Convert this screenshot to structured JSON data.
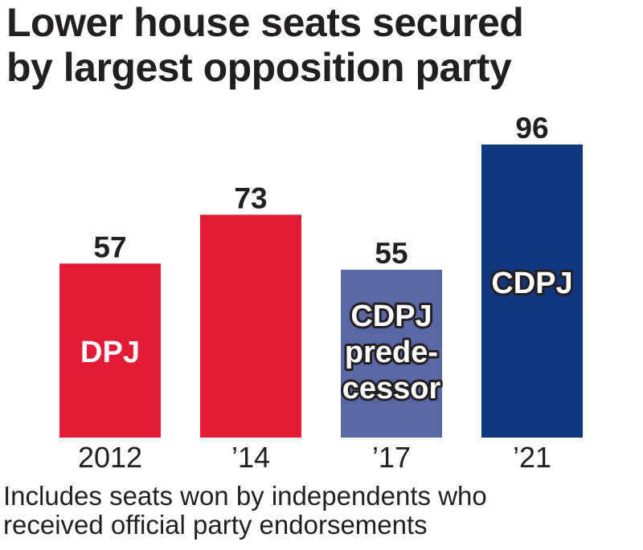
{
  "title_lines": [
    "Lower house seats secured",
    "by largest opposition party"
  ],
  "footnote_lines": [
    "Includes seats won by independents who",
    "received official party endorsements"
  ],
  "colors": {
    "red": "#e31b35",
    "light_blue": "#5867a6",
    "dark_blue": "#113780",
    "text": "#231f20"
  },
  "chart_data": {
    "type": "bar",
    "categories": [
      "2012",
      "’14",
      "’17",
      "’21"
    ],
    "values": [
      57,
      73,
      55,
      96
    ],
    "bar_labels": [
      [
        "DPJ"
      ],
      [],
      [
        "CDPJ",
        "prede-",
        "cessor"
      ],
      [
        "CDPJ"
      ]
    ],
    "bar_colors": [
      "#e31b35",
      "#e31b35",
      "#5867a6",
      "#113780"
    ],
    "ylim": [
      0,
      96
    ],
    "grid": false,
    "legend": "none"
  }
}
